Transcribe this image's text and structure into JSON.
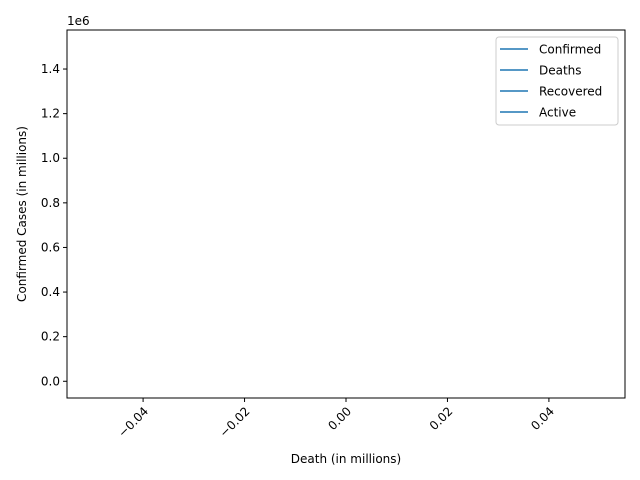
{
  "chart_data": {
    "type": "line",
    "title": "",
    "xlabel": "Death (in millions)",
    "ylabel": "Confirmed Cases (in millions)",
    "y_offset_label": "1e6",
    "xlim": [
      -0.055,
      0.055
    ],
    "ylim": [
      -0.075,
      1.575
    ],
    "x_ticks": [
      -0.04,
      -0.02,
      0.0,
      0.02,
      0.04
    ],
    "x_tick_labels": [
      "−0.04",
      "−0.02",
      "0.00",
      "0.02",
      "0.04"
    ],
    "x_tick_rotation": 45,
    "y_ticks": [
      0.0,
      0.2,
      0.4,
      0.6,
      0.8,
      1.0,
      1.2,
      1.4
    ],
    "y_tick_labels": [
      "0.0",
      "0.2",
      "0.4",
      "0.6",
      "0.8",
      "1.0",
      "1.2",
      "1.4"
    ],
    "grid": false,
    "legend_position": "top-right",
    "series": [
      {
        "name": "Confirmed",
        "color": "#1f77b4",
        "x": [],
        "y": []
      },
      {
        "name": "Deaths",
        "color": "#1f77b4",
        "x": [],
        "y": []
      },
      {
        "name": "Recovered",
        "color": "#1f77b4",
        "x": [],
        "y": []
      },
      {
        "name": "Active",
        "color": "#1f77b4",
        "x": [],
        "y": []
      }
    ]
  }
}
